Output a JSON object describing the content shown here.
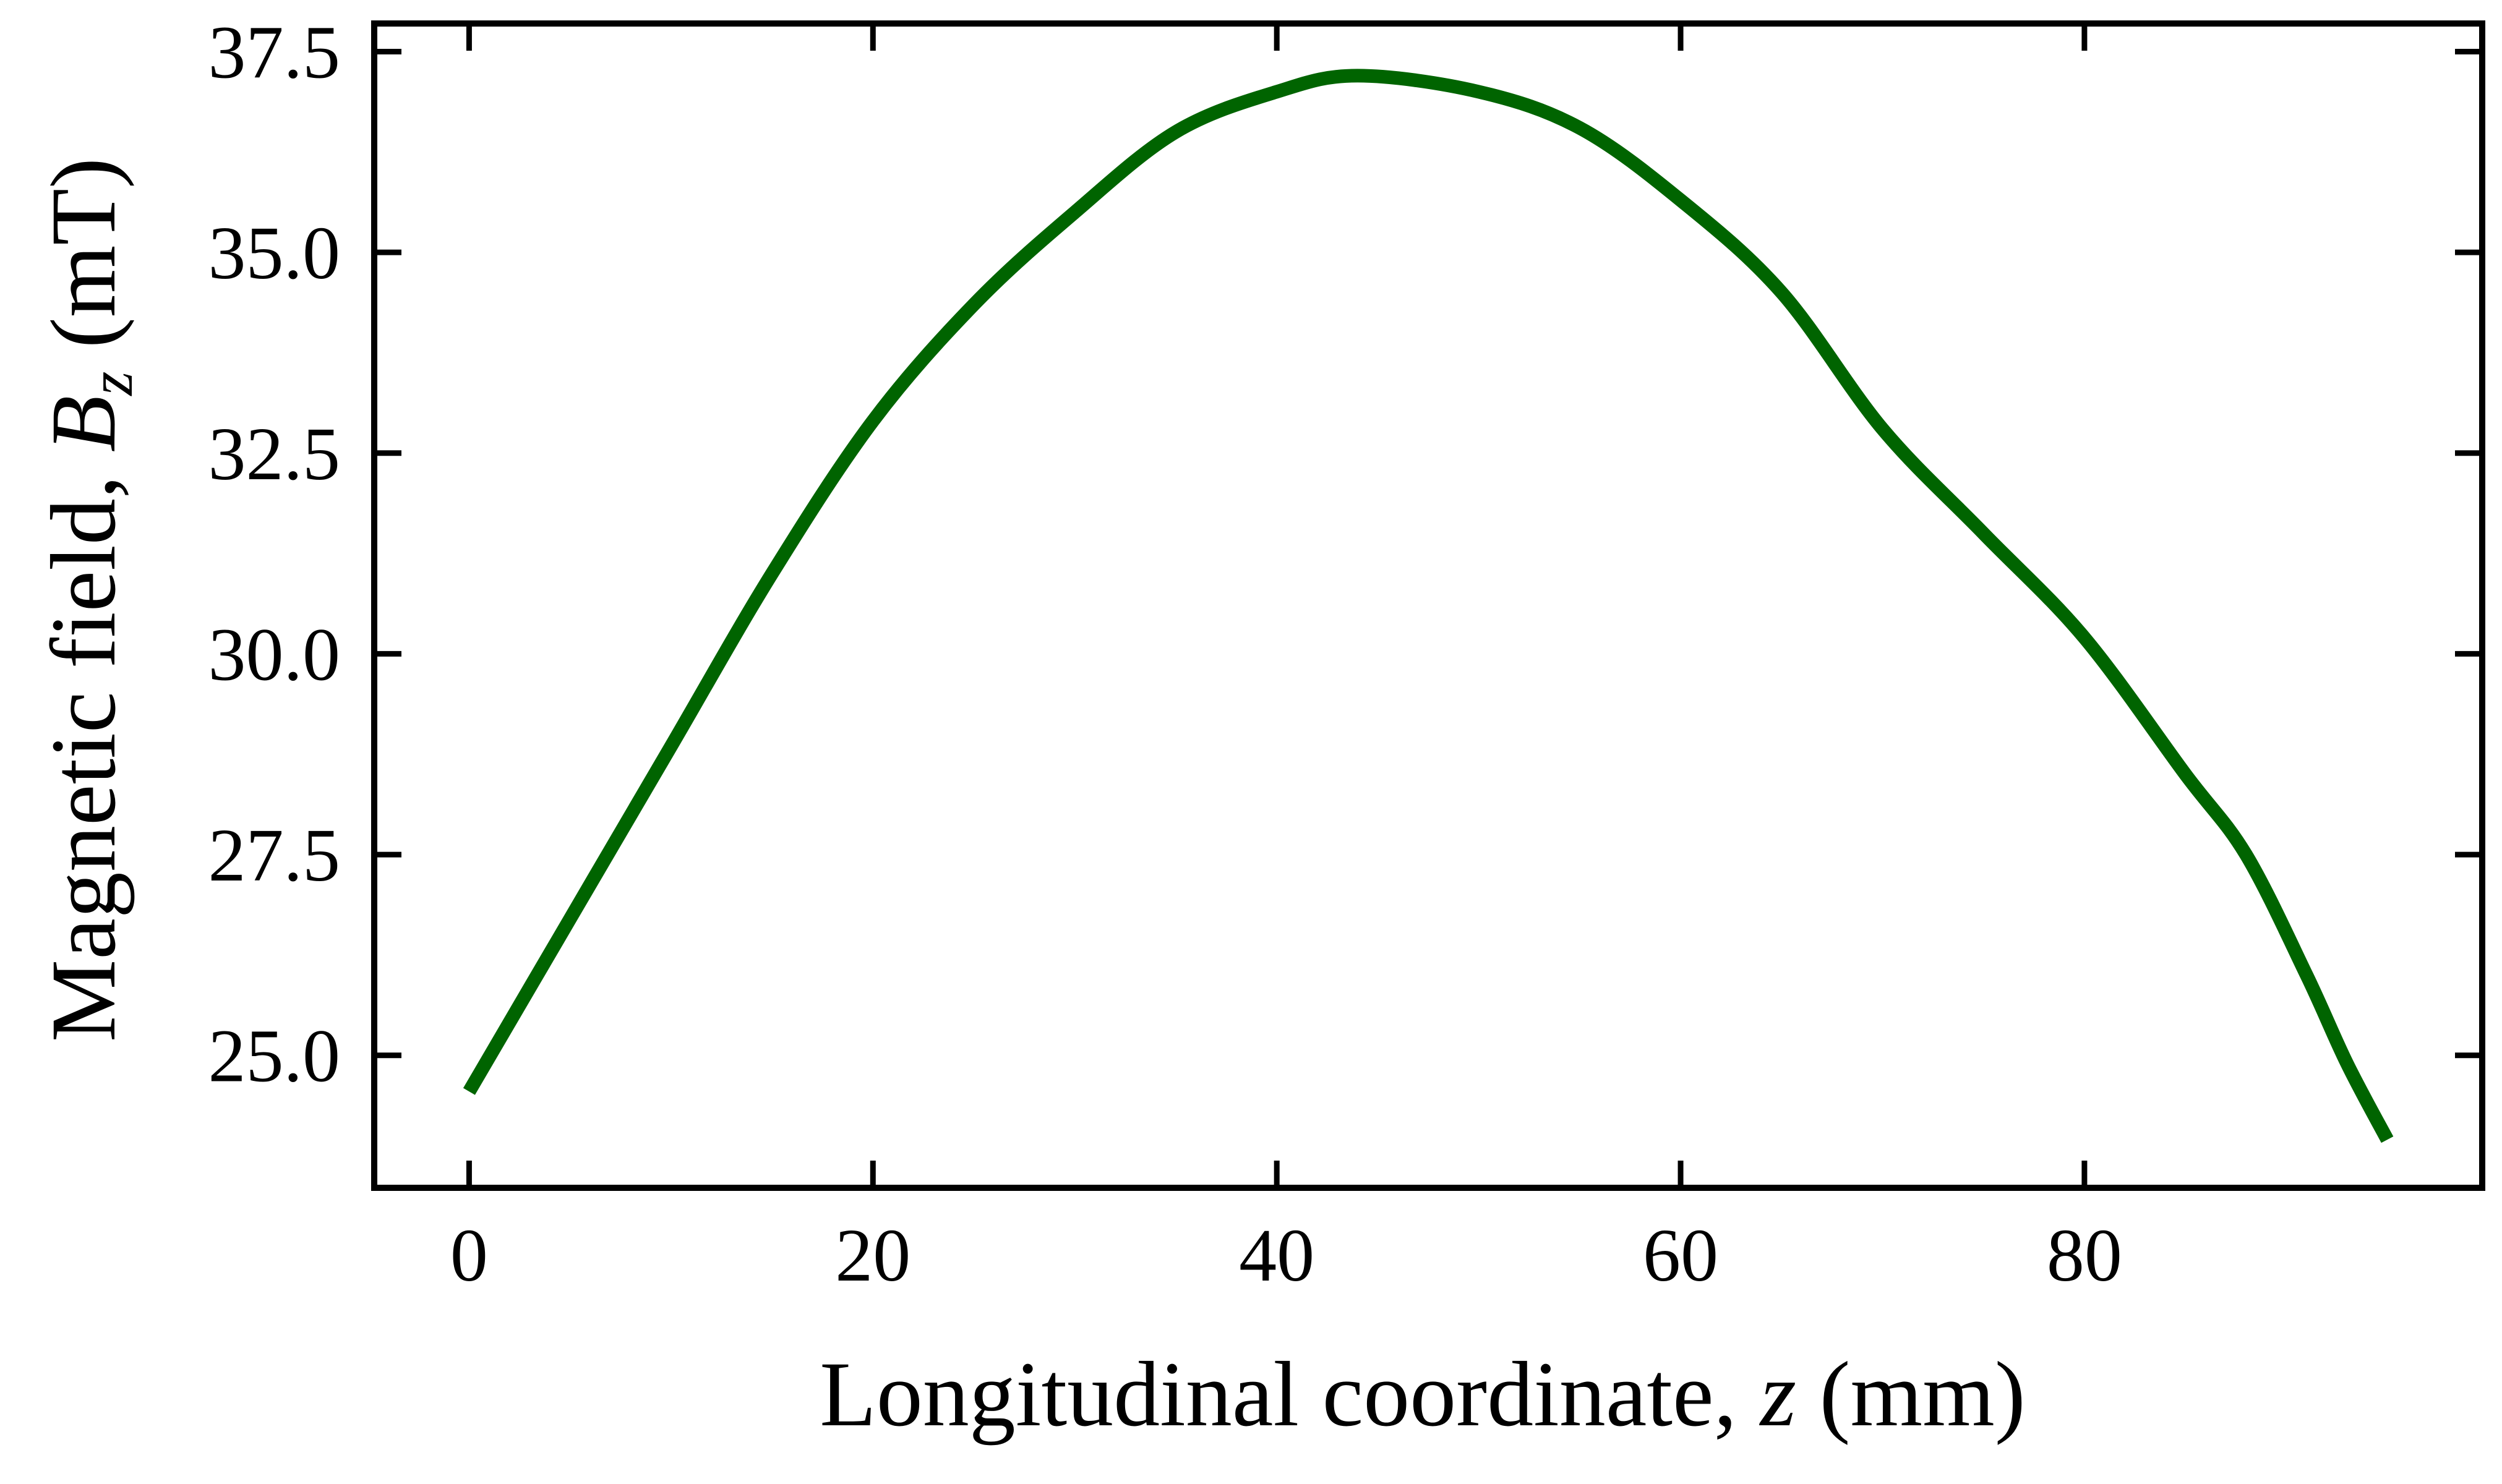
{
  "chart_data": {
    "type": "line",
    "xlabel_parts": [
      "Longitudinal coordinate, ",
      "z",
      " (mm)"
    ],
    "ylabel_parts": [
      "Magnetic field, ",
      "B",
      "z",
      " (mT)"
    ],
    "xlim": [
      -4.7,
      99.7
    ],
    "ylim": [
      23.35,
      37.85
    ],
    "xticks": [
      0,
      20,
      40,
      60,
      80
    ],
    "xtick_labels": [
      "0",
      "20",
      "40",
      "60",
      "80"
    ],
    "yticks": [
      25.0,
      27.5,
      30.0,
      32.5,
      35.0,
      37.5
    ],
    "ytick_labels": [
      "25.0",
      "27.5",
      "30.0",
      "32.5",
      "35.0",
      "37.5"
    ],
    "grid": false,
    "colors": {
      "line": "#006400",
      "axes": "#000000"
    },
    "series": [
      {
        "x": [
          0,
          5,
          10,
          15,
          20,
          25,
          30,
          35,
          40,
          44,
          50,
          55,
          60,
          65,
          70,
          75,
          80,
          85,
          88,
          91,
          93,
          95
        ],
        "y": [
          24.55,
          26.7,
          28.85,
          31.0,
          32.9,
          34.35,
          35.5,
          36.5,
          37.0,
          37.2,
          37.0,
          36.55,
          35.65,
          34.5,
          32.8,
          31.5,
          30.2,
          28.5,
          27.5,
          26.0,
          24.9,
          23.95
        ]
      }
    ]
  }
}
